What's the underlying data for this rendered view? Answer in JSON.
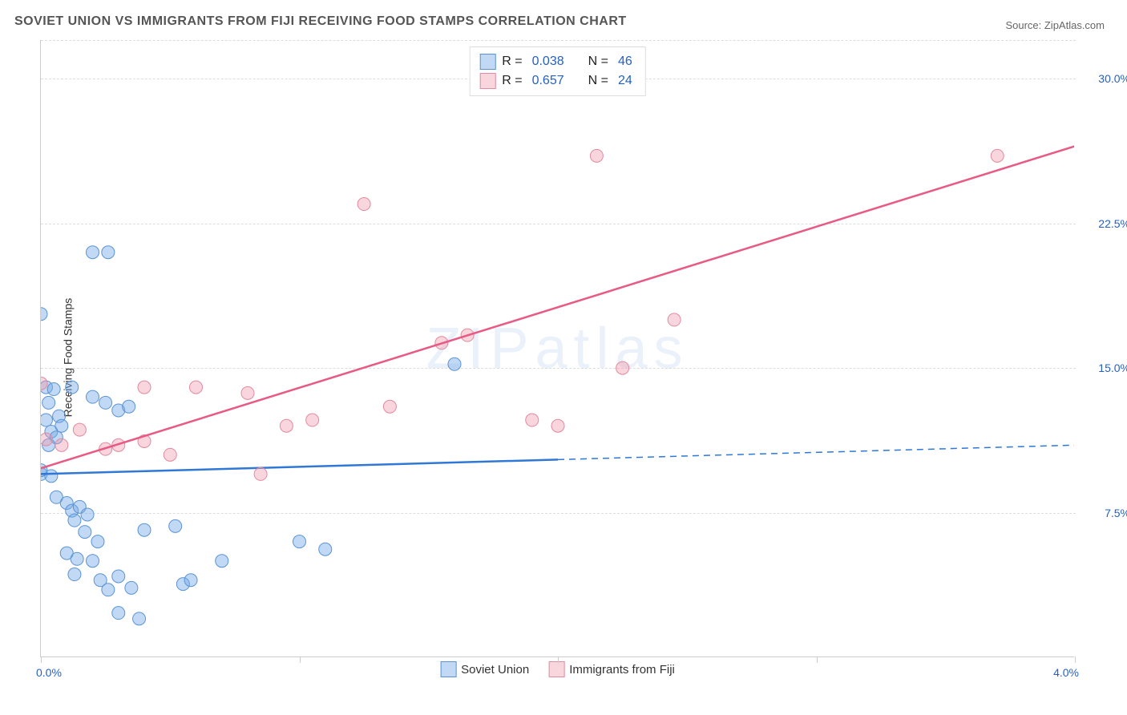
{
  "title": "SOVIET UNION VS IMMIGRANTS FROM FIJI RECEIVING FOOD STAMPS CORRELATION CHART",
  "source_prefix": "Source: ",
  "source_name": "ZipAtlas.com",
  "ylabel": "Receiving Food Stamps",
  "watermark": "ZIPatlas",
  "chart": {
    "type": "scatter",
    "xlim": [
      0.0,
      4.0
    ],
    "ylim": [
      0.0,
      32.0
    ],
    "xticks": [
      0.0,
      4.0
    ],
    "xtick_labels": [
      "0.0%",
      "4.0%"
    ],
    "x_minor_ticks": [
      0.0,
      1.0,
      2.0,
      3.0,
      4.0
    ],
    "yticks": [
      7.5,
      15.0,
      22.5,
      30.0
    ],
    "ytick_labels": [
      "7.5%",
      "15.0%",
      "22.5%",
      "30.0%"
    ],
    "y_top_grid": 32.0,
    "background_color": "#ffffff",
    "grid_color": "#dddddd",
    "axis_color": "#cccccc",
    "tick_label_color": "#2561c2",
    "marker_radius": 8,
    "marker_stroke_width": 1,
    "line_width": 2.5,
    "series": [
      {
        "name": "Soviet Union",
        "fill": "rgba(117,170,230,0.45)",
        "stroke": "#5a94d6",
        "line_color": "#2f78d6",
        "R": 0.038,
        "N": 46,
        "points": [
          [
            0.0,
            17.8
          ],
          [
            0.02,
            14.0
          ],
          [
            0.03,
            13.2
          ],
          [
            0.04,
            11.7
          ],
          [
            0.05,
            13.9
          ],
          [
            0.06,
            11.4
          ],
          [
            0.07,
            12.5
          ],
          [
            0.08,
            12.0
          ],
          [
            0.0,
            9.5
          ],
          [
            0.04,
            9.4
          ],
          [
            0.2,
            21.0
          ],
          [
            0.26,
            21.0
          ],
          [
            0.12,
            14.0
          ],
          [
            0.2,
            13.5
          ],
          [
            0.25,
            13.2
          ],
          [
            0.3,
            12.8
          ],
          [
            0.34,
            13.0
          ],
          [
            1.6,
            15.2
          ],
          [
            0.06,
            8.3
          ],
          [
            0.1,
            8.0
          ],
          [
            0.12,
            7.6
          ],
          [
            0.15,
            7.8
          ],
          [
            0.13,
            7.1
          ],
          [
            0.17,
            6.5
          ],
          [
            0.18,
            7.4
          ],
          [
            0.22,
            6.0
          ],
          [
            0.1,
            5.4
          ],
          [
            0.14,
            5.1
          ],
          [
            0.13,
            4.3
          ],
          [
            0.2,
            5.0
          ],
          [
            0.23,
            4.0
          ],
          [
            0.26,
            3.5
          ],
          [
            0.3,
            4.2
          ],
          [
            0.35,
            3.6
          ],
          [
            0.3,
            2.3
          ],
          [
            0.38,
            2.0
          ],
          [
            0.4,
            6.6
          ],
          [
            0.52,
            6.8
          ],
          [
            0.55,
            3.8
          ],
          [
            0.58,
            4.0
          ],
          [
            0.7,
            5.0
          ],
          [
            1.0,
            6.0
          ],
          [
            1.1,
            5.6
          ],
          [
            0.0,
            9.7
          ],
          [
            0.02,
            12.3
          ],
          [
            0.03,
            11.0
          ]
        ],
        "trend": {
          "x1": 0.0,
          "y1": 9.5,
          "x2_solid": 2.0,
          "x2": 4.0,
          "y2": 11.0
        }
      },
      {
        "name": "Immigrants from Fiji",
        "fill": "rgba(240,150,170,0.40)",
        "stroke": "#e28aa0",
        "line_color": "#e85a84",
        "R": 0.657,
        "N": 24,
        "points": [
          [
            0.0,
            14.2
          ],
          [
            0.02,
            11.3
          ],
          [
            0.08,
            11.0
          ],
          [
            0.25,
            10.8
          ],
          [
            0.3,
            11.0
          ],
          [
            0.4,
            14.0
          ],
          [
            0.6,
            14.0
          ],
          [
            0.8,
            13.7
          ],
          [
            0.85,
            9.5
          ],
          [
            0.95,
            12.0
          ],
          [
            1.05,
            12.3
          ],
          [
            1.25,
            23.5
          ],
          [
            1.35,
            13.0
          ],
          [
            1.55,
            16.3
          ],
          [
            1.65,
            16.7
          ],
          [
            1.9,
            12.3
          ],
          [
            2.0,
            12.0
          ],
          [
            2.15,
            26.0
          ],
          [
            2.25,
            15.0
          ],
          [
            2.45,
            17.5
          ],
          [
            3.7,
            26.0
          ],
          [
            0.4,
            11.2
          ],
          [
            0.5,
            10.5
          ],
          [
            0.15,
            11.8
          ]
        ],
        "trend": {
          "x1": 0.0,
          "y1": 9.8,
          "x2_solid": 4.0,
          "x2": 4.0,
          "y2": 26.5
        }
      }
    ]
  },
  "stat_legend": {
    "R_label": "R =",
    "N_label": "N =",
    "value_color": "#2561c2"
  },
  "bottom_legend": {
    "items": [
      "Soviet Union",
      "Immigrants from Fiji"
    ]
  }
}
